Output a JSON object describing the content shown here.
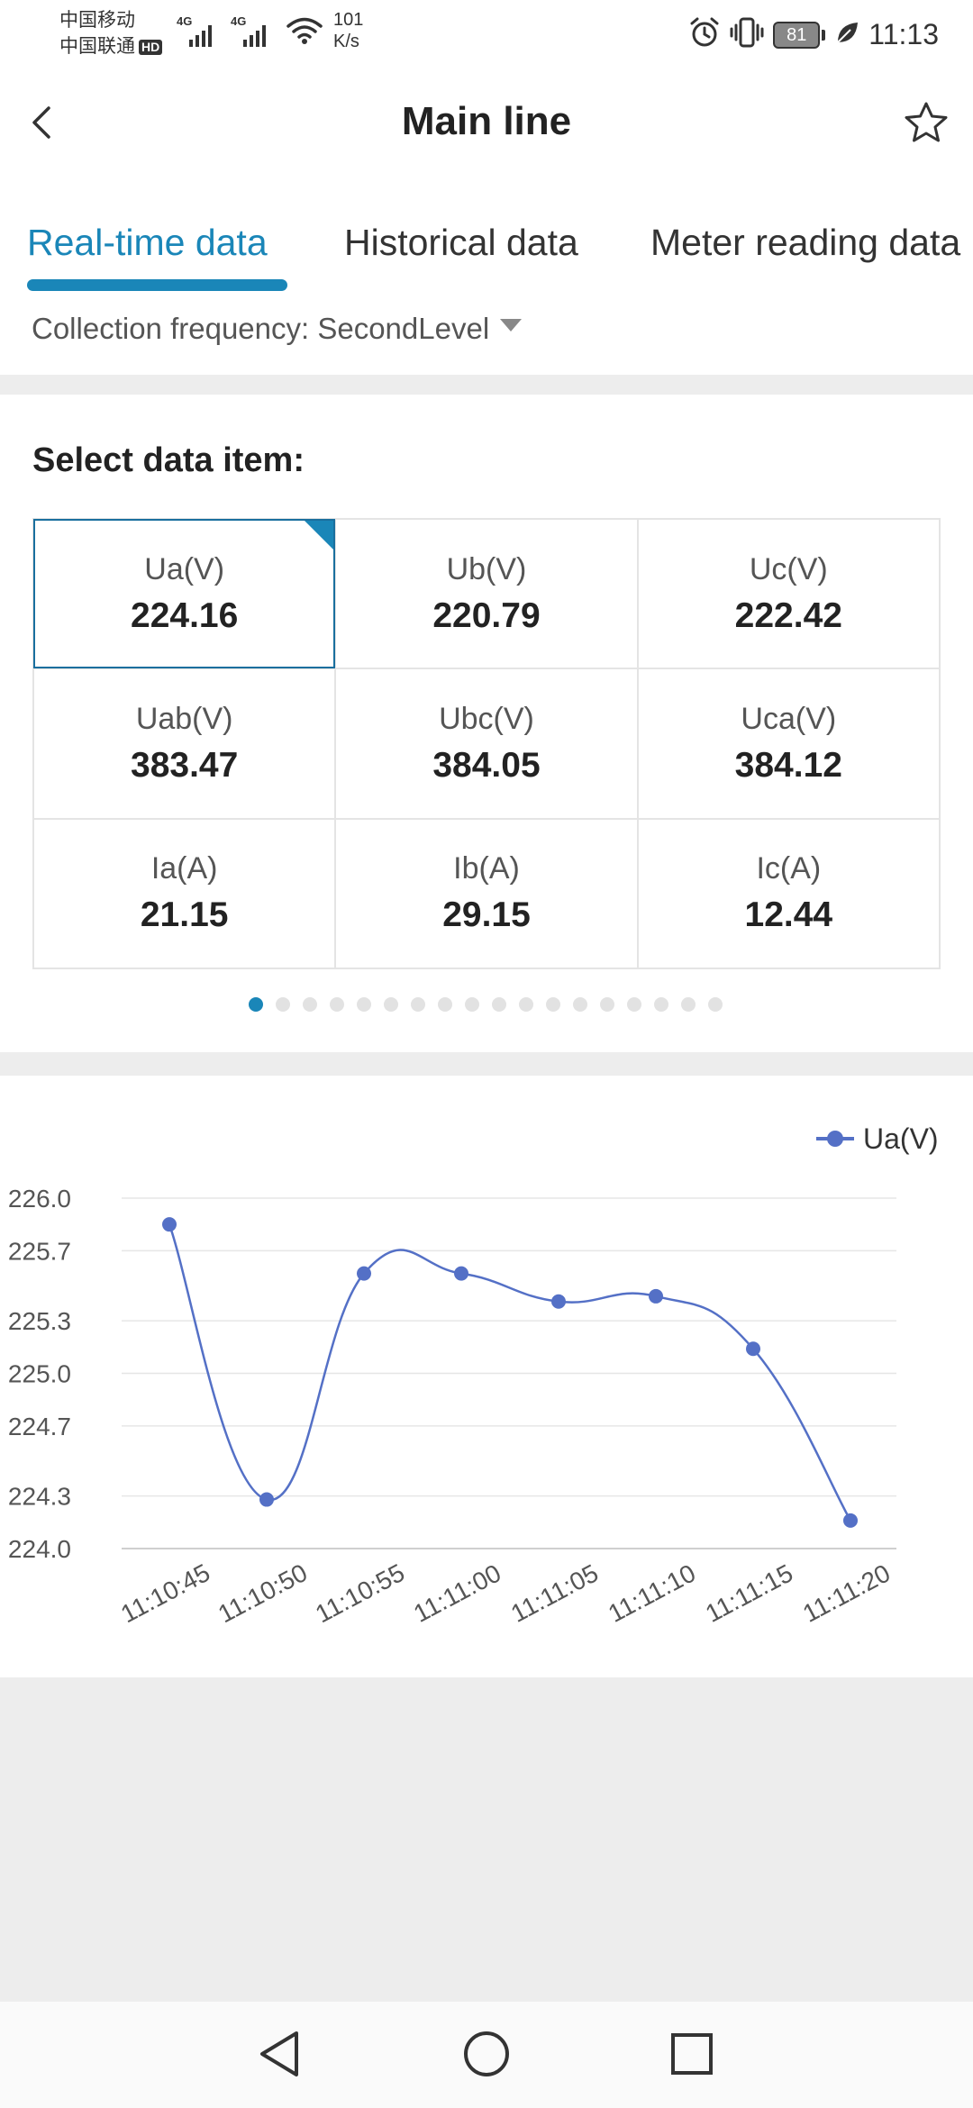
{
  "status": {
    "carrier1": "中国移动",
    "carrier2": "中国联通",
    "hd": "HD",
    "net1": "4G",
    "net2": "4G",
    "speed_value": "101",
    "speed_unit": "K/s",
    "battery": "81",
    "time": "11:13"
  },
  "header": {
    "title": "Main line"
  },
  "tabs": [
    {
      "label": "Real-time data"
    },
    {
      "label": "Historical data"
    },
    {
      "label": "Meter reading data"
    }
  ],
  "frequency": {
    "text": "Collection frequency: SecondLevel"
  },
  "data_section": {
    "title": "Select data item:",
    "items": [
      {
        "label": "Ua(V)",
        "value": "224.16"
      },
      {
        "label": "Ub(V)",
        "value": "220.79"
      },
      {
        "label": "Uc(V)",
        "value": "222.42"
      },
      {
        "label": "Uab(V)",
        "value": "383.47"
      },
      {
        "label": "Ubc(V)",
        "value": "384.05"
      },
      {
        "label": "Uca(V)",
        "value": "384.12"
      },
      {
        "label": "Ia(A)",
        "value": "21.15"
      },
      {
        "label": "Ib(A)",
        "value": "29.15"
      },
      {
        "label": "Ic(A)",
        "value": "12.44"
      }
    ],
    "page_count": 18,
    "page_index": 0
  },
  "colors": {
    "accent": "#1a86b8",
    "series": "#5470c6",
    "grid": "#e6e6e6"
  },
  "chart_data": {
    "type": "line",
    "title": "",
    "xlabel": "",
    "ylabel": "",
    "categories": [
      "11:10:45",
      "11:10:50",
      "11:10:55",
      "11:11:00",
      "11:11:05",
      "11:11:10",
      "11:11:15",
      "11:11:20"
    ],
    "series": [
      {
        "name": "Ua(V)",
        "values": [
          225.85,
          224.28,
          225.57,
          225.57,
          225.41,
          225.44,
          225.14,
          224.16
        ]
      }
    ],
    "yticks": [
      "224.0",
      "224.3",
      "224.7",
      "225.0",
      "225.3",
      "225.7",
      "226.0"
    ],
    "ylim": [
      224.0,
      226.0
    ],
    "legend": "top-right",
    "smooth": true,
    "grid": true
  }
}
